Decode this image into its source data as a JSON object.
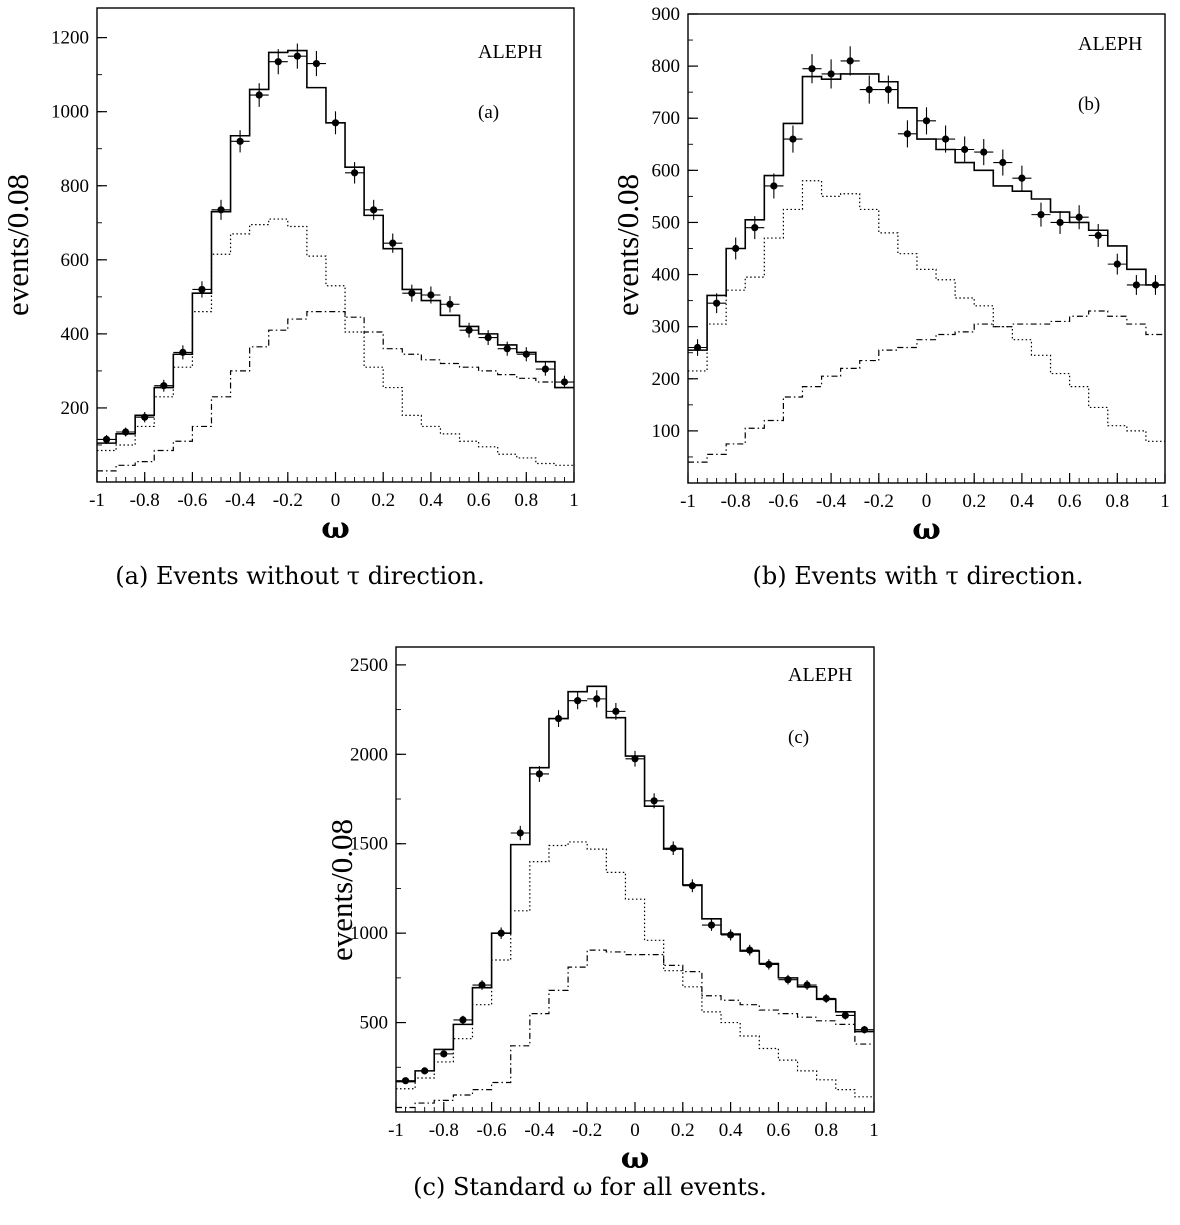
{
  "chart_data": [
    {
      "type": "histogram",
      "panel_label": "(a)",
      "experiment_label": "ALEPH",
      "xlabel": "ω",
      "ylabel": "events/0.08",
      "caption": "(a) Events without τ direction.",
      "xlim": [
        -1,
        1
      ],
      "ylim": [
        0,
        1280
      ],
      "xticks": [
        -1,
        -0.8,
        -0.6,
        -0.4,
        -0.2,
        0,
        0.2,
        0.4,
        0.6,
        0.8,
        1
      ],
      "xtick_labels": [
        "-1",
        "-0.8",
        "-0.6",
        "-0.4",
        "-0.2",
        "0",
        "0.2",
        "0.4",
        "0.6",
        "0.8",
        "1"
      ],
      "yticks": [
        200,
        400,
        600,
        800,
        1000,
        1200
      ],
      "ytick_labels": [
        "200",
        "400",
        "600",
        "800",
        "1000",
        "1200"
      ],
      "bin_edges": [
        -1,
        -0.92,
        -0.84,
        -0.76,
        -0.68,
        -0.6,
        -0.52,
        -0.44,
        -0.36,
        -0.28,
        -0.2,
        -0.12,
        -0.04,
        0.04,
        0.12,
        0.2,
        0.28,
        0.36,
        0.44,
        0.52,
        0.6,
        0.68,
        0.76,
        0.84,
        0.92,
        1
      ],
      "data_points": {
        "x": [
          -0.96,
          -0.88,
          -0.8,
          -0.72,
          -0.64,
          -0.56,
          -0.48,
          -0.4,
          -0.32,
          -0.24,
          -0.16,
          -0.08,
          0,
          0.08,
          0.16,
          0.24,
          0.32,
          0.4,
          0.48,
          0.56,
          0.64,
          0.72,
          0.8,
          0.88,
          0.96
        ],
        "y": [
          115,
          135,
          175,
          260,
          350,
          520,
          735,
          920,
          1045,
          1135,
          1150,
          1130,
          970,
          835,
          735,
          645,
          510,
          505,
          480,
          410,
          390,
          360,
          345,
          305,
          270
        ],
        "yerr": [
          12,
          12,
          14,
          16,
          19,
          22,
          27,
          30,
          32,
          34,
          34,
          34,
          31,
          29,
          27,
          26,
          23,
          23,
          22,
          20,
          20,
          19,
          19,
          18,
          17
        ]
      },
      "series": [
        {
          "name": "",
          "style": "solid",
          "values": [
            105,
            130,
            180,
            255,
            345,
            510,
            730,
            935,
            1060,
            1160,
            1165,
            1065,
            970,
            850,
            720,
            630,
            520,
            490,
            450,
            420,
            400,
            370,
            350,
            325,
            255
          ]
        },
        {
          "name": "",
          "style": "dotted",
          "values": [
            85,
            100,
            150,
            230,
            310,
            460,
            615,
            670,
            695,
            710,
            690,
            610,
            530,
            405,
            310,
            255,
            180,
            150,
            130,
            110,
            95,
            75,
            65,
            50,
            45
          ]
        },
        {
          "name": "",
          "style": "dashdot",
          "values": [
            30,
            45,
            55,
            85,
            110,
            150,
            230,
            300,
            365,
            410,
            440,
            460,
            460,
            445,
            405,
            360,
            345,
            330,
            320,
            310,
            300,
            290,
            280,
            270,
            255
          ]
        }
      ]
    },
    {
      "type": "histogram",
      "panel_label": "(b)",
      "experiment_label": "ALEPH",
      "xlabel": "ω",
      "ylabel": "events/0.08",
      "caption": "(b) Events with τ direction.",
      "xlim": [
        -1,
        1
      ],
      "ylim": [
        0,
        900
      ],
      "xticks": [
        -1,
        -0.8,
        -0.6,
        -0.4,
        -0.2,
        0,
        0.2,
        0.4,
        0.6,
        0.8,
        1
      ],
      "xtick_labels": [
        "-1",
        "-0.8",
        "-0.6",
        "-0.4",
        "-0.2",
        "0",
        "0.2",
        "0.4",
        "0.6",
        "0.8",
        "1"
      ],
      "yticks": [
        100,
        200,
        300,
        400,
        500,
        600,
        700,
        800,
        900
      ],
      "ytick_labels": [
        "100",
        "200",
        "300",
        "400",
        "500",
        "600",
        "700",
        "800",
        "900"
      ],
      "bin_edges": [
        -1,
        -0.92,
        -0.84,
        -0.76,
        -0.68,
        -0.6,
        -0.52,
        -0.44,
        -0.36,
        -0.28,
        -0.2,
        -0.12,
        -0.04,
        0.04,
        0.12,
        0.2,
        0.28,
        0.36,
        0.44,
        0.52,
        0.6,
        0.68,
        0.76,
        0.84,
        0.92,
        1
      ],
      "data_points": {
        "x": [
          -0.96,
          -0.88,
          -0.8,
          -0.72,
          -0.64,
          -0.56,
          -0.48,
          -0.4,
          -0.32,
          -0.24,
          -0.16,
          -0.08,
          0,
          0.08,
          0.16,
          0.24,
          0.32,
          0.4,
          0.48,
          0.56,
          0.64,
          0.72,
          0.8,
          0.88,
          0.96
        ],
        "y": [
          260,
          345,
          450,
          490,
          570,
          660,
          795,
          785,
          810,
          755,
          755,
          670,
          695,
          660,
          640,
          635,
          615,
          585,
          515,
          500,
          510,
          475,
          420,
          380,
          380
        ],
        "yerr": [
          16,
          19,
          21,
          22,
          24,
          26,
          28,
          28,
          28,
          27,
          27,
          26,
          26,
          26,
          25,
          25,
          25,
          24,
          23,
          22,
          23,
          22,
          20,
          19,
          19
        ]
      },
      "series": [
        {
          "name": "",
          "style": "solid",
          "values": [
            255,
            360,
            450,
            505,
            590,
            690,
            780,
            775,
            785,
            785,
            770,
            720,
            660,
            640,
            615,
            600,
            570,
            560,
            545,
            520,
            500,
            485,
            455,
            410,
            380
          ]
        },
        {
          "name": "",
          "style": "dotted",
          "values": [
            215,
            305,
            370,
            395,
            470,
            525,
            580,
            550,
            555,
            525,
            480,
            440,
            410,
            390,
            355,
            340,
            300,
            275,
            245,
            210,
            185,
            145,
            110,
            100,
            80
          ]
        },
        {
          "name": "",
          "style": "dashdot",
          "values": [
            40,
            55,
            75,
            105,
            120,
            165,
            185,
            205,
            220,
            235,
            255,
            260,
            275,
            285,
            290,
            305,
            300,
            305,
            305,
            310,
            320,
            330,
            320,
            305,
            285
          ]
        }
      ]
    },
    {
      "type": "histogram",
      "panel_label": "(c)",
      "experiment_label": "ALEPH",
      "xlabel": "ω",
      "ylabel": "events/0.08",
      "caption": "(c) Standard ω for all events.",
      "xlim": [
        -1,
        1
      ],
      "ylim": [
        0,
        2600
      ],
      "xticks": [
        -1,
        -0.8,
        -0.6,
        -0.4,
        -0.2,
        0,
        0.2,
        0.4,
        0.6,
        0.8,
        1
      ],
      "xtick_labels": [
        "-1",
        "-0.8",
        "-0.6",
        "-0.4",
        "-0.2",
        "0",
        "0.2",
        "0.4",
        "0.6",
        "0.8",
        "1"
      ],
      "yticks": [
        500,
        1000,
        1500,
        2000,
        2500
      ],
      "ytick_labels": [
        "500",
        "1000",
        "1500",
        "2000",
        "2500"
      ],
      "bin_edges": [
        -1,
        -0.92,
        -0.84,
        -0.76,
        -0.68,
        -0.6,
        -0.52,
        -0.44,
        -0.36,
        -0.28,
        -0.2,
        -0.12,
        -0.04,
        0.04,
        0.12,
        0.2,
        0.28,
        0.36,
        0.44,
        0.52,
        0.6,
        0.68,
        0.76,
        0.84,
        0.92,
        1
      ],
      "data_points": {
        "x": [
          -0.96,
          -0.88,
          -0.8,
          -0.72,
          -0.64,
          -0.56,
          -0.48,
          -0.4,
          -0.32,
          -0.24,
          -0.16,
          -0.08,
          0,
          0.08,
          0.16,
          0.24,
          0.32,
          0.4,
          0.48,
          0.56,
          0.64,
          0.72,
          0.8,
          0.88,
          0.96
        ],
        "y": [
          175,
          230,
          325,
          515,
          710,
          1000,
          1560,
          1890,
          2200,
          2300,
          2310,
          2240,
          1975,
          1740,
          1475,
          1265,
          1045,
          990,
          905,
          825,
          740,
          710,
          635,
          540,
          460
        ],
        "yerr": [
          13,
          15,
          18,
          23,
          27,
          32,
          40,
          44,
          47,
          48,
          48,
          47,
          44,
          42,
          38,
          36,
          32,
          31,
          30,
          29,
          27,
          27,
          25,
          23,
          21
        ]
      },
      "series": [
        {
          "name": "",
          "style": "solid",
          "values": [
            170,
            230,
            350,
            490,
            695,
            1000,
            1495,
            1925,
            2200,
            2350,
            2380,
            2205,
            1990,
            1710,
            1470,
            1270,
            1080,
            995,
            900,
            830,
            750,
            700,
            630,
            560,
            450
          ]
        },
        {
          "name": "",
          "style": "dotted",
          "values": [
            130,
            190,
            280,
            410,
            600,
            850,
            1125,
            1400,
            1490,
            1510,
            1470,
            1340,
            1190,
            960,
            790,
            700,
            560,
            500,
            425,
            355,
            290,
            230,
            180,
            125,
            85
          ]
        },
        {
          "name": "",
          "style": "dashdot",
          "values": [
            25,
            50,
            65,
            95,
            125,
            165,
            370,
            550,
            680,
            810,
            905,
            895,
            880,
            880,
            820,
            785,
            650,
            625,
            600,
            570,
            550,
            530,
            510,
            490,
            380
          ]
        }
      ]
    }
  ]
}
